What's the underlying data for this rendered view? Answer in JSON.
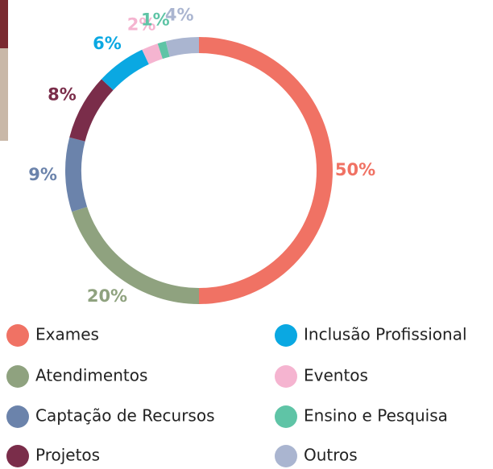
{
  "chart_data": {
    "type": "pie",
    "donut": true,
    "categories": [
      "Exames",
      "Atendimentos",
      "Captação de Recursos",
      "Projetos",
      "Inclusão Profissional",
      "Eventos",
      "Ensino e Pesquisa",
      "Outros"
    ],
    "values": [
      50,
      20,
      9,
      8,
      6,
      2,
      1,
      4
    ],
    "value_labels": [
      "50%",
      "20%",
      "9%",
      "8%",
      "6%",
      "2%",
      "1%",
      "4%"
    ],
    "colors": [
      "#f07264",
      "#8fa27f",
      "#6b83ab",
      "#7a2d4a",
      "#0aa8e2",
      "#f5b4d0",
      "#5fc4a6",
      "#aab5d0"
    ]
  }
}
